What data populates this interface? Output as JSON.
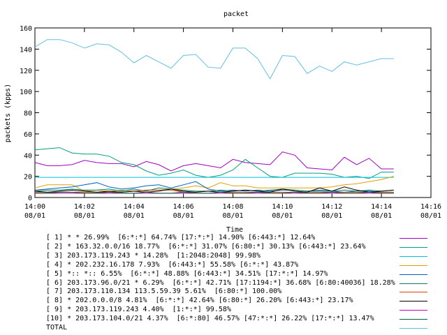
{
  "chart_data": {
    "type": "line",
    "title": "packet",
    "xlabel": "Time",
    "ylabel": "packets (kpps)",
    "ylim": [
      0,
      160
    ],
    "yticks": [
      "0",
      "20",
      "40",
      "60",
      "80",
      "100",
      "120",
      "140",
      "160"
    ],
    "xticks": [
      {
        "time": "14:00",
        "date": "08/01"
      },
      {
        "time": "14:02",
        "date": "08/01"
      },
      {
        "time": "14:04",
        "date": "08/01"
      },
      {
        "time": "14:06",
        "date": "08/01"
      },
      {
        "time": "14:08",
        "date": "08/01"
      },
      {
        "time": "14:10",
        "date": "08/01"
      },
      {
        "time": "14:12",
        "date": "08/01"
      },
      {
        "time": "14:14",
        "date": "08/01"
      },
      {
        "time": "14:16",
        "date": "08/01"
      }
    ],
    "xlim": [
      "14:00",
      "14:16"
    ],
    "x": [
      "14:00",
      "14:00:30",
      "14:01",
      "14:01:30",
      "14:02",
      "14:02:30",
      "14:03",
      "14:03:30",
      "14:04",
      "14:04:30",
      "14:05",
      "14:05:30",
      "14:06",
      "14:06:30",
      "14:07",
      "14:07:30",
      "14:08",
      "14:08:30",
      "14:09",
      "14:09:30",
      "14:10",
      "14:10:30",
      "14:11",
      "14:11:30",
      "14:12",
      "14:12:30",
      "14:13",
      "14:13:30",
      "14:14",
      "14:14:30"
    ],
    "grid": false,
    "series": [
      {
        "name": "[ 1] * * 26.99%  [6:*:*] 64.74% [17:*:*] 14.90% [6:443:*] 12.64%",
        "color": "#a000c0",
        "values": [
          33,
          30,
          30,
          31,
          35,
          33,
          32,
          32,
          29,
          34,
          31,
          25,
          30,
          32,
          30,
          28,
          36,
          33,
          32,
          31,
          43,
          40,
          28,
          27,
          26,
          38,
          31,
          37,
          27,
          27
        ]
      },
      {
        "name": "[ 2] * 163.32.0.0/16 18.77%  [6:*:*] 31.07% [6:80:*] 30.13% [6:443:*] 23.64%",
        "color": "#00a080",
        "values": [
          45,
          46,
          47,
          42,
          41,
          41,
          39,
          33,
          31,
          25,
          21,
          23,
          26,
          21,
          19,
          21,
          26,
          36,
          28,
          20,
          19,
          23,
          23,
          23,
          22,
          19,
          20,
          18,
          24,
          24
        ]
      },
      {
        "name": "[ 3] 203.173.119.243 * 14.28%  [1:2048:2048] 99.98%",
        "color": "#00c0e0",
        "values": [
          19,
          19,
          19,
          19,
          19,
          19,
          19,
          19,
          19,
          19,
          19,
          19,
          19,
          19,
          19,
          19,
          19,
          19,
          19,
          19,
          19,
          19,
          19,
          19,
          19,
          19,
          19,
          19,
          19,
          19
        ]
      },
      {
        "name": "[ 4] * 202.232.16.178 7.93%  [6:443:*] 55.58% [6:*:*] 43.87%",
        "color": "#e0a000",
        "values": [
          9,
          12,
          12,
          12,
          6,
          7,
          6,
          7,
          6,
          7,
          7,
          8,
          9,
          11,
          9,
          14,
          11,
          11,
          9,
          9,
          9,
          9,
          9,
          9,
          10,
          12,
          13,
          15,
          17,
          20
        ]
      },
      {
        "name": "[ 5] *:: *:: 6.55%  [6:*:*] 48.88% [6:443:*] 34.51% [17:*:*] 14.97%",
        "color": "#0060c0",
        "values": [
          7,
          8,
          9,
          10,
          12,
          14,
          10,
          8,
          9,
          11,
          12,
          9,
          12,
          15,
          8,
          6,
          7,
          6,
          7,
          6,
          7,
          7,
          6,
          6,
          6,
          5,
          6,
          6,
          5,
          5
        ]
      },
      {
        "name": "[ 6] 203.173.96.0/21 * 6.29%  [6:*:*] 42.71% [17:1194:*] 36.68% [6:80:40036] 18.28%",
        "color": "#008060",
        "values": [
          6,
          7,
          7,
          8,
          7,
          7,
          8,
          6,
          8,
          6,
          9,
          8,
          7,
          6,
          6,
          7,
          6,
          7,
          6,
          7,
          8,
          7,
          6,
          7,
          6,
          7,
          6,
          7,
          6,
          7
        ]
      },
      {
        "name": "[ 7] 203.173.110.134 113.5.59.39 5.61%  [6:80:*] 100.00%",
        "color": "#e04000",
        "values": [
          5,
          5,
          5,
          5,
          5,
          5,
          5,
          5,
          6,
          7,
          7,
          7,
          5,
          5,
          6,
          5,
          5,
          5,
          5,
          5,
          5,
          5,
          5,
          5,
          5,
          5,
          5,
          5,
          5,
          5
        ]
      },
      {
        "name": "[ 8] * 202.0.0.0/8 4.81%  [6:*:*] 42.64% [6:80:*] 26.20% [6:443:*] 23.17%",
        "color": "#000000",
        "values": [
          6,
          5,
          6,
          7,
          6,
          5,
          6,
          5,
          6,
          5,
          6,
          8,
          6,
          5,
          6,
          5,
          6,
          7,
          6,
          5,
          8,
          6,
          5,
          9,
          6,
          10,
          7,
          5,
          6,
          7
        ]
      },
      {
        "name": "[ 9] * 203.173.119.243 4.40%  [1:*:*] 99.58%",
        "color": "#c000c0",
        "values": [
          4,
          4,
          4,
          4,
          4,
          4,
          4,
          4,
          4,
          4,
          4,
          4,
          4,
          4,
          4,
          4,
          4,
          4,
          4,
          4,
          4,
          4,
          4,
          4,
          4,
          4,
          4,
          4,
          4,
          4
        ]
      },
      {
        "name": "[10] * 203.173.104.0/21 4.37%  [6:*:80] 46.57% [47:*:*] 26.22% [17:*:*] 13.47%",
        "color": "#006040",
        "values": [
          4,
          4,
          5,
          5,
          4,
          4,
          5,
          4,
          4,
          5,
          4,
          4,
          5,
          4,
          4,
          5,
          4,
          4,
          5,
          4,
          4,
          5,
          4,
          4,
          5,
          4,
          4,
          5,
          4,
          4
        ]
      },
      {
        "name": "TOTAL",
        "color": "#60c0e0",
        "values": [
          142,
          149,
          149,
          146,
          141,
          145,
          144,
          137,
          127,
          134,
          128,
          122,
          134,
          135,
          123,
          122,
          141,
          141,
          131,
          112,
          134,
          133,
          117,
          124,
          119,
          128,
          125,
          128,
          131,
          131
        ]
      }
    ]
  }
}
